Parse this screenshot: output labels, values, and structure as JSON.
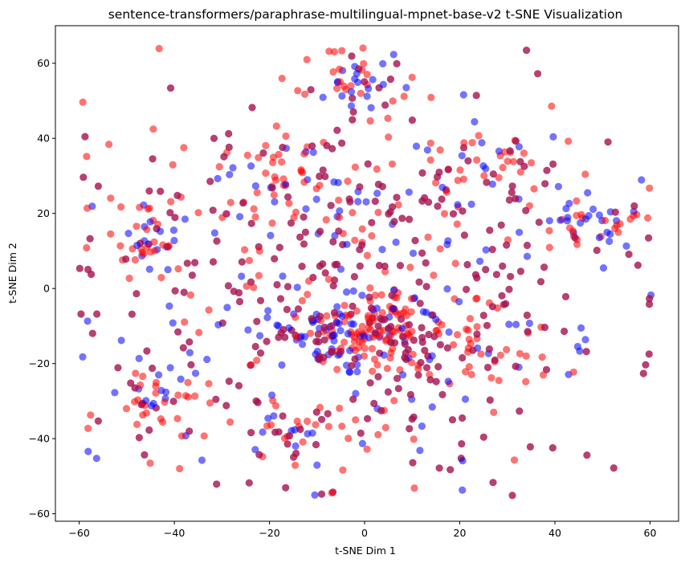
{
  "chart_data": {
    "type": "scatter",
    "title": "sentence-transformers/paraphrase-multilingual-mpnet-base-v2 t-SNE Visualization",
    "xlabel": "t-SNE Dim 1",
    "ylabel": "t-SNE Dim 2",
    "xlim": [
      -65,
      66
    ],
    "ylim": [
      -62,
      70
    ],
    "xticks": [
      "-60",
      "-40",
      "-20",
      "0",
      "20",
      "40",
      "60"
    ],
    "yticks": [
      "-60",
      "-40",
      "-20",
      "0",
      "20",
      "40",
      "60"
    ],
    "grid": false,
    "legend": "none",
    "colors": {
      "red": "#ff0000",
      "blue": "#0000ff",
      "purple": "#a6104f"
    },
    "marker_alpha": 0.55,
    "clusters": [
      {
        "center": [
          3,
          -10
        ],
        "spread": [
          5,
          5
        ],
        "n": 90,
        "mix": [
          0.65,
          0.25,
          0.1
        ]
      },
      {
        "center": [
          -8,
          -12
        ],
        "spread": [
          6,
          6
        ],
        "n": 70,
        "mix": [
          0.2,
          0.7,
          0.1
        ]
      },
      {
        "center": [
          0,
          55
        ],
        "spread": [
          6,
          4
        ],
        "n": 50,
        "mix": [
          0.55,
          0.35,
          0.1
        ]
      },
      {
        "center": [
          -18,
          30
        ],
        "spread": [
          6,
          6
        ],
        "n": 60,
        "mix": [
          0.55,
          0.35,
          0.1
        ]
      },
      {
        "center": [
          -45,
          15
        ],
        "spread": [
          4,
          6
        ],
        "n": 45,
        "mix": [
          0.5,
          0.4,
          0.1
        ]
      },
      {
        "center": [
          -45,
          -30
        ],
        "spread": [
          5,
          6
        ],
        "n": 45,
        "mix": [
          0.55,
          0.25,
          0.2
        ]
      },
      {
        "center": [
          50,
          18
        ],
        "spread": [
          5,
          3
        ],
        "n": 40,
        "mix": [
          0.55,
          0.35,
          0.1
        ]
      },
      {
        "center": [
          25,
          30
        ],
        "spread": [
          7,
          6
        ],
        "n": 50,
        "mix": [
          0.55,
          0.3,
          0.15
        ]
      },
      {
        "center": [
          -15,
          -38
        ],
        "spread": [
          7,
          5
        ],
        "n": 40,
        "mix": [
          0.55,
          0.3,
          0.15
        ]
      },
      {
        "center": [
          20,
          -15
        ],
        "spread": [
          8,
          7
        ],
        "n": 45,
        "mix": [
          0.6,
          0.2,
          0.2
        ]
      },
      {
        "center": [
          0,
          0
        ],
        "spread": [
          28,
          24
        ],
        "n": 480,
        "mix": [
          0.25,
          0.15,
          0.6
        ]
      }
    ],
    "point_count_approx": 1055
  }
}
